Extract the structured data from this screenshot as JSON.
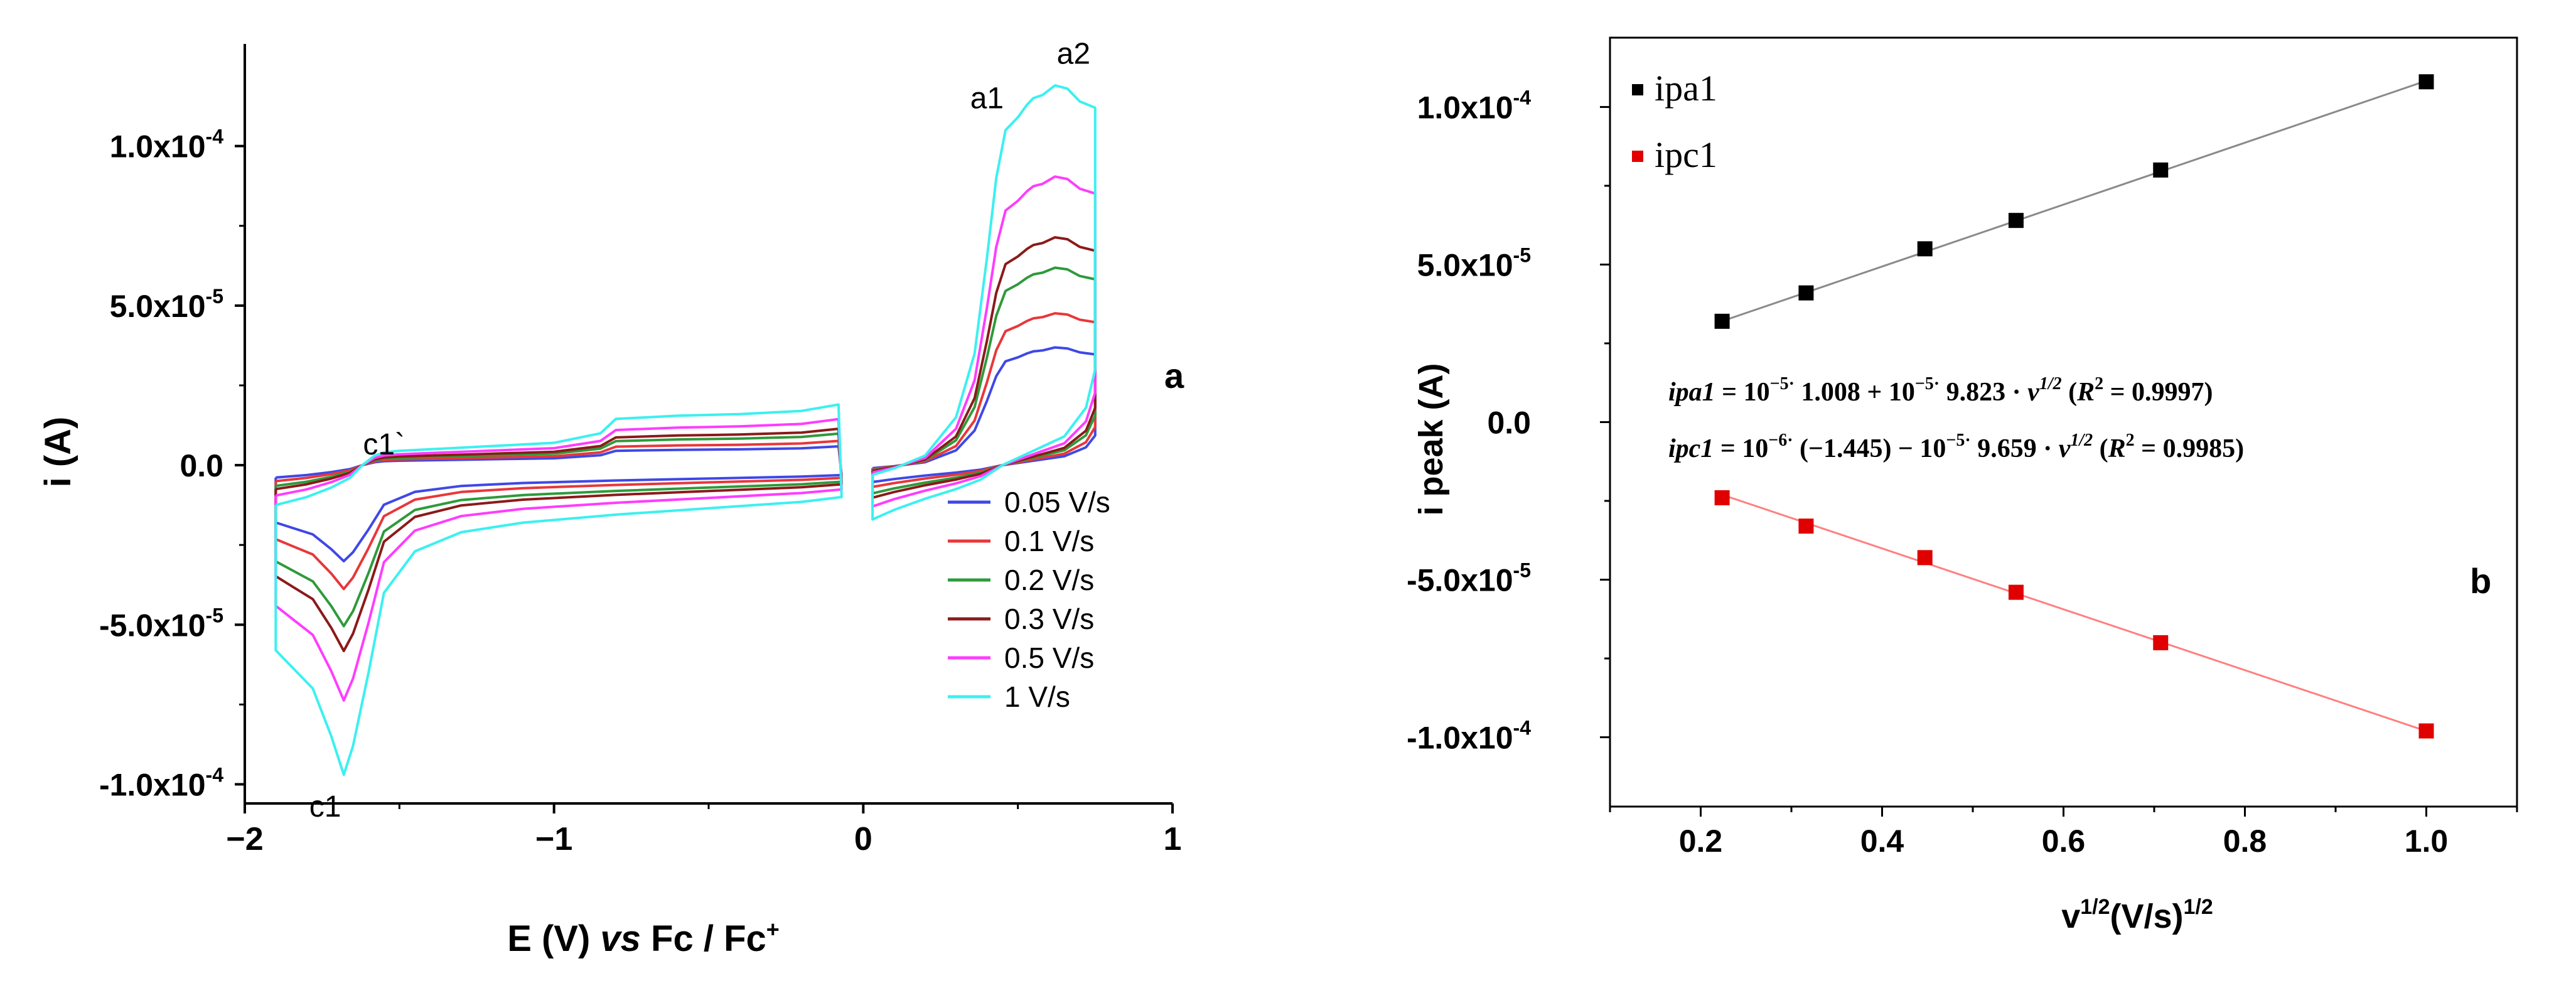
{
  "colors": {
    "axis": "#000000",
    "cv_series": [
      "#3f48e6",
      "#e8373a",
      "#2e9a3a",
      "#8b1a1a",
      "#ff3cff",
      "#3cf0f0"
    ],
    "ipa1": "#000000",
    "ipc1": "#e00000",
    "ipa1_fit": "#8a8a8a",
    "ipc1_fit": "#ff7f7f"
  },
  "chart_data": [
    {
      "type": "line",
      "panel_label": "a",
      "title": "",
      "xlabel": {
        "prefix": "E (V) ",
        "italic": "vs",
        "suffix": " Fc / Fc",
        "sup": "+"
      },
      "ylabel": "i (A)",
      "xlim": [
        -2,
        1
      ],
      "ylim": [
        -0.000106,
        0.000132
      ],
      "x_ticks": [
        -2,
        -1,
        0,
        1
      ],
      "x_tick_labels": [
        "−2",
        "−1",
        "0",
        "1"
      ],
      "y_ticks": [
        -0.0001,
        -5e-05,
        0,
        5e-05,
        0.0001
      ],
      "y_tick_labels": [
        {
          "mant": "-1.0x10",
          "exp": "-4"
        },
        {
          "mant": "-5.0x10",
          "exp": "-5"
        },
        {
          "mant": "0.0",
          "exp": ""
        },
        {
          "mant": "5.0x10",
          "exp": "-5"
        },
        {
          "mant": "1.0x10",
          "exp": "-4"
        }
      ],
      "annotations": [
        {
          "text": "a1",
          "x": 0.4,
          "y": 0.000115
        },
        {
          "text": "a2",
          "x": 0.68,
          "y": 0.000129
        },
        {
          "text": "c1`",
          "x": -1.55,
          "y": 6.5e-06
        },
        {
          "text": "c1",
          "x": -1.74,
          "y": -0.000107
        }
      ],
      "scan_rates": [
        0.05,
        0.1,
        0.2,
        0.3,
        0.5,
        1.0
      ],
      "series": [
        {
          "name": "0.05 V/s",
          "scale": 0.31
        },
        {
          "name": "0.1 V/s",
          "scale": 0.4
        },
        {
          "name": "0.2 V/s",
          "scale": 0.52
        },
        {
          "name": "0.3 V/s",
          "scale": 0.6
        },
        {
          "name": "0.5 V/s",
          "scale": 0.76
        },
        {
          "name": "1 V/s",
          "scale": 1.0
        }
      ],
      "segment_negative": {
        "upper_x": [
          -1.9,
          -1.8,
          -1.72,
          -1.66,
          -1.62,
          -1.58,
          -1.55,
          -1.5,
          -1.4,
          -1.2,
          -1.0,
          -0.85,
          -0.8,
          -0.6,
          -0.4,
          -0.2,
          -0.08
        ],
        "upper_y": [
          -1.25e-05,
          -1e-05,
          -7e-06,
          -4e-06,
          0.0,
          3e-06,
          4e-06,
          4.5e-06,
          5e-06,
          6e-06,
          7e-06,
          1e-05,
          1.45e-05,
          1.55e-05,
          1.6e-05,
          1.7e-05,
          1.9e-05
        ],
        "lower_x": [
          -0.07,
          -0.2,
          -0.5,
          -0.8,
          -1.1,
          -1.3,
          -1.45,
          -1.55,
          -1.6,
          -1.65,
          -1.68,
          -1.72,
          -1.78,
          -1.85,
          -1.9
        ],
        "lower_y": [
          -1e-05,
          -1.15e-05,
          -1.35e-05,
          -1.55e-05,
          -1.8e-05,
          -2.1e-05,
          -2.7e-05,
          -4e-05,
          -6.5e-05,
          -8.8e-05,
          -9.7e-05,
          -8.5e-05,
          -7e-05,
          -6.3e-05,
          -5.8e-05
        ]
      },
      "segment_positive": {
        "upper_x": [
          0.03,
          0.1,
          0.2,
          0.3,
          0.36,
          0.4,
          0.43,
          0.46,
          0.5,
          0.53,
          0.55,
          0.58,
          0.62,
          0.66,
          0.7,
          0.75
        ],
        "upper_y": [
          -3e-06,
          -1e-06,
          3e-06,
          1.5e-05,
          3.5e-05,
          6.5e-05,
          9e-05,
          0.000105,
          0.000109,
          0.000113,
          0.000115,
          0.000116,
          0.000119,
          0.000118,
          0.000114,
          0.000112
        ],
        "lower_x": [
          0.75,
          0.72,
          0.65,
          0.55,
          0.45,
          0.38,
          0.3,
          0.2,
          0.1,
          0.03
        ],
        "lower_y": [
          3e-05,
          1.8e-05,
          9e-06,
          4.5e-06,
          0.0,
          -4.5e-06,
          -7.5e-06,
          -1.05e-05,
          -1.4e-05,
          -1.7e-05
        ]
      }
    },
    {
      "type": "scatter",
      "panel_label": "b",
      "title": "",
      "xlabel": {
        "main": "v",
        "sup1": "1/2",
        "mid": "(V/s)",
        "sup2": "1/2"
      },
      "ylabel": "i peak (A)",
      "xlim": [
        0.1,
        1.1
      ],
      "ylim": [
        -0.000122,
        0.000122
      ],
      "x_ticks": [
        0.2,
        0.4,
        0.6,
        0.8,
        1.0
      ],
      "x_tick_labels": [
        "0.2",
        "0.4",
        "0.6",
        "0.8",
        "1.0"
      ],
      "y_ticks": [
        -0.0001,
        -5e-05,
        0,
        5e-05,
        0.0001
      ],
      "y_tick_labels": [
        {
          "mant": "-1.0x10",
          "exp": "-4"
        },
        {
          "mant": "-5.0x10",
          "exp": "-5"
        },
        {
          "mant": "0.0",
          "exp": ""
        },
        {
          "mant": "5.0x10",
          "exp": "-5"
        },
        {
          "mant": "1.0x10",
          "exp": "-4"
        }
      ],
      "x": [
        0.2236,
        0.3162,
        0.4472,
        0.5477,
        0.7071,
        1.0
      ],
      "series": [
        {
          "name": "ipa1",
          "values": [
            3.2e-05,
            4.1e-05,
            5.5e-05,
            6.4e-05,
            8e-05,
            0.000108
          ],
          "fit": {
            "intercept": 1.008e-05,
            "slope": 9.823e-05
          }
        },
        {
          "name": "ipc1",
          "values": [
            -2.4e-05,
            -3.3e-05,
            -4.3e-05,
            -5.4e-05,
            -7e-05,
            -9.8e-05
          ],
          "fit": {
            "intercept": -1.445e-06,
            "slope": -9.659e-05
          }
        }
      ],
      "equations": [
        {
          "lhs": "ipa1",
          "eq": " = 10",
          "exp1": "−5·",
          "m1": " 1.008 + 10",
          "exp2": "−5·",
          "m2": " 9.823 · ",
          "v": "v",
          "vexp": "1/2",
          "r_open": " (",
          "r": "R",
          "rexp": "2",
          "r_val": " = 0.9997)"
        },
        {
          "lhs": "ipc1",
          "eq": " = 10",
          "exp1": "−6·",
          "m1": " (−1.445) − 10",
          "exp2": "−5·",
          "m2": " 9.659 · ",
          "v": "v",
          "vexp": "1/2",
          "r_open": " (",
          "r": "R",
          "rexp": "2",
          "r_val": " = 0.9985)"
        }
      ]
    }
  ]
}
